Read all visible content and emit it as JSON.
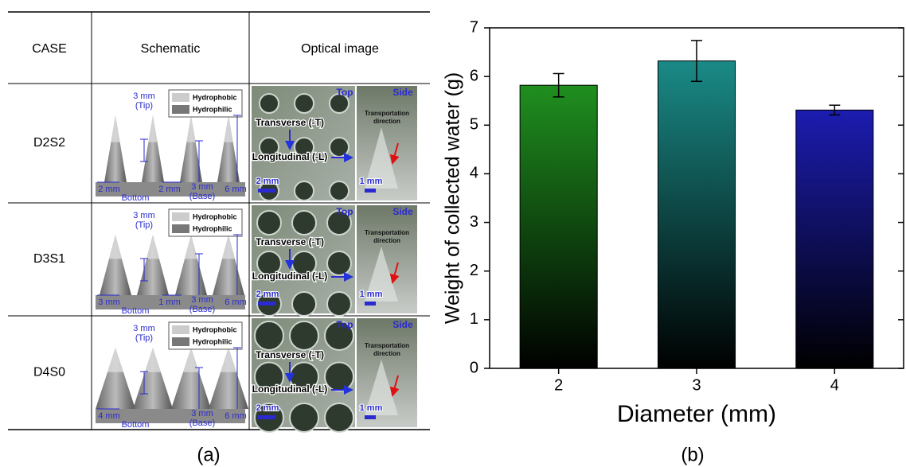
{
  "table": {
    "header": [
      "CASE",
      "Schematic",
      "Optical image"
    ],
    "rows": [
      {
        "case": "D2S2",
        "schematic": {
          "legend": [
            "Hydrophobic",
            "Hydrophilic"
          ],
          "tip": [
            "3 mm",
            "(Tip)"
          ],
          "spacing": "2 mm",
          "bottom": "Bottom",
          "gap": "2 mm",
          "base": [
            "3 mm",
            "(Base)"
          ],
          "height": "6 mm"
        },
        "optical": {
          "top": "Top",
          "side": "Side",
          "transverse": "Transverse (-T)",
          "longitudinal": "Longitudinal (-L)",
          "top_scale": "2 mm",
          "transport": [
            "Transportation",
            "direction"
          ],
          "side_scale": "1 mm"
        }
      },
      {
        "case": "D3S1",
        "schematic": {
          "legend": [
            "Hydrophobic",
            "Hydrophilic"
          ],
          "tip": [
            "3 mm",
            "(Tip)"
          ],
          "spacing": "3 mm",
          "bottom": "Bottom",
          "gap": "1 mm",
          "base": [
            "3 mm",
            "(Base)"
          ],
          "height": "6 mm"
        },
        "optical": {
          "top": "Top",
          "side": "Side",
          "transverse": "Transverse (-T)",
          "longitudinal": "Longitudinal (-L)",
          "top_scale": "2 mm",
          "transport": [
            "Transportation",
            "direction"
          ],
          "side_scale": "1 mm"
        }
      },
      {
        "case": "D4S0",
        "schematic": {
          "legend": [
            "Hydrophobic",
            "Hydrophilic"
          ],
          "tip": [
            "3 mm",
            "(Tip)"
          ],
          "spacing": "4 mm",
          "bottom": "Bottom",
          "base": [
            "3 mm",
            "(Base)"
          ],
          "height": "6 mm"
        },
        "optical": {
          "top": "Top",
          "side": "Side",
          "transverse": "Transverse (-T)",
          "longitudinal": "Longitudinal (-L)",
          "top_scale": "2 mm",
          "transport": [
            "Transportation",
            "direction"
          ],
          "side_scale": "1 mm"
        }
      }
    ]
  },
  "captions": [
    "(a)",
    "(b)"
  ],
  "chart_data": {
    "type": "bar",
    "xlabel": "Diameter (mm)",
    "ylabel": "Weight of collected water (g)",
    "categories": [
      "2",
      "3",
      "4"
    ],
    "values": [
      5.82,
      6.32,
      5.31
    ],
    "errors": [
      0.24,
      0.42,
      0.1
    ],
    "colors": [
      "#1f8f1f",
      "#1a8a86",
      "#1c1cb0"
    ],
    "ylim": [
      0,
      7
    ],
    "yticks": [
      0,
      1,
      2,
      3,
      4,
      5,
      6,
      7
    ]
  }
}
